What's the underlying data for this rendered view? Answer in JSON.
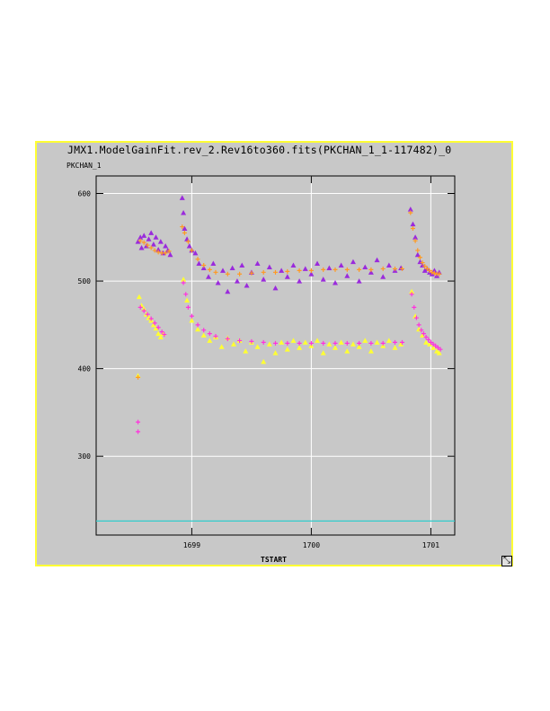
{
  "window": {
    "title": "JMX1.ModelGainFit.rev_2.Rev16to360.fits(PKCHAN_1_1-117482)_0",
    "resize_icon": "resize-diagonal-icon",
    "border_color": "#ffff33",
    "background_color": "#c8c8c8"
  },
  "chart_data": {
    "type": "scatter",
    "title": "JMX1.ModelGainFit.rev_2.Rev16to360.fits(PKCHAN_1_1-117482)_0",
    "xlabel": "TSTART",
    "ylabel": "PKCHAN_1",
    "xlim": [
      1698.2,
      1701.2
    ],
    "ylim": [
      210,
      620
    ],
    "xticks": [
      1699,
      1700,
      1701
    ],
    "yticks": [
      300,
      400,
      500,
      600
    ],
    "xtick_labels": [
      "1699",
      "1700",
      "1701"
    ],
    "ytick_labels": [
      "300",
      "400",
      "500",
      "600"
    ],
    "grid": true,
    "series": [
      {
        "color": "#9a2bdc",
        "marker": "triangle",
        "points": [
          [
            1698.55,
            545
          ],
          [
            1698.57,
            550
          ],
          [
            1698.58,
            538
          ],
          [
            1698.6,
            552
          ],
          [
            1698.62,
            540
          ],
          [
            1698.64,
            548
          ],
          [
            1698.66,
            555
          ],
          [
            1698.68,
            542
          ],
          [
            1698.7,
            550
          ],
          [
            1698.72,
            536
          ],
          [
            1698.74,
            545
          ],
          [
            1698.76,
            532
          ],
          [
            1698.78,
            540
          ],
          [
            1698.8,
            535
          ],
          [
            1698.82,
            530
          ],
          [
            1698.92,
            595
          ],
          [
            1698.93,
            578
          ],
          [
            1698.94,
            560
          ],
          [
            1698.96,
            548
          ],
          [
            1698.98,
            540
          ],
          [
            1699.0,
            535
          ],
          [
            1699.03,
            532
          ],
          [
            1699.06,
            520
          ],
          [
            1699.1,
            515
          ],
          [
            1699.14,
            505
          ],
          [
            1699.18,
            520
          ],
          [
            1699.22,
            498
          ],
          [
            1699.26,
            512
          ],
          [
            1699.3,
            488
          ],
          [
            1699.34,
            515
          ],
          [
            1699.38,
            500
          ],
          [
            1699.42,
            518
          ],
          [
            1699.46,
            495
          ],
          [
            1699.5,
            510
          ],
          [
            1699.55,
            520
          ],
          [
            1699.6,
            502
          ],
          [
            1699.65,
            516
          ],
          [
            1699.7,
            492
          ],
          [
            1699.75,
            512
          ],
          [
            1699.8,
            505
          ],
          [
            1699.85,
            518
          ],
          [
            1699.9,
            500
          ],
          [
            1699.95,
            514
          ],
          [
            1700.0,
            508
          ],
          [
            1700.05,
            520
          ],
          [
            1700.1,
            502
          ],
          [
            1700.15,
            515
          ],
          [
            1700.2,
            498
          ],
          [
            1700.25,
            518
          ],
          [
            1700.3,
            506
          ],
          [
            1700.35,
            522
          ],
          [
            1700.4,
            500
          ],
          [
            1700.45,
            516
          ],
          [
            1700.5,
            510
          ],
          [
            1700.55,
            524
          ],
          [
            1700.6,
            505
          ],
          [
            1700.65,
            518
          ],
          [
            1700.7,
            512
          ],
          [
            1700.75,
            515
          ],
          [
            1700.83,
            582
          ],
          [
            1700.85,
            565
          ],
          [
            1700.87,
            550
          ],
          [
            1700.89,
            530
          ],
          [
            1700.91,
            522
          ],
          [
            1700.93,
            518
          ],
          [
            1700.95,
            512
          ],
          [
            1700.97,
            514
          ],
          [
            1700.99,
            510
          ],
          [
            1701.01,
            508
          ],
          [
            1701.03,
            512
          ],
          [
            1701.05,
            506
          ],
          [
            1701.07,
            510
          ]
        ]
      },
      {
        "color": "#ffff33",
        "marker": "triangle",
        "points": [
          [
            1698.55,
            392
          ],
          [
            1698.56,
            482
          ],
          [
            1698.58,
            472
          ],
          [
            1698.6,
            468
          ],
          [
            1698.62,
            462
          ],
          [
            1698.64,
            458
          ],
          [
            1698.66,
            455
          ],
          [
            1698.68,
            450
          ],
          [
            1698.7,
            446
          ],
          [
            1698.72,
            440
          ],
          [
            1698.74,
            436
          ],
          [
            1698.76,
            440
          ],
          [
            1698.93,
            502
          ],
          [
            1698.96,
            478
          ],
          [
            1699.0,
            455
          ],
          [
            1699.05,
            445
          ],
          [
            1699.1,
            438
          ],
          [
            1699.15,
            432
          ],
          [
            1699.2,
            436
          ],
          [
            1699.25,
            425
          ],
          [
            1699.3,
            435
          ],
          [
            1699.35,
            428
          ],
          [
            1699.4,
            432
          ],
          [
            1699.45,
            420
          ],
          [
            1699.5,
            430
          ],
          [
            1699.55,
            425
          ],
          [
            1699.6,
            408
          ],
          [
            1699.65,
            428
          ],
          [
            1699.7,
            418
          ],
          [
            1699.75,
            430
          ],
          [
            1699.8,
            422
          ],
          [
            1699.85,
            432
          ],
          [
            1699.9,
            424
          ],
          [
            1699.95,
            430
          ],
          [
            1700.0,
            426
          ],
          [
            1700.05,
            432
          ],
          [
            1700.1,
            418
          ],
          [
            1700.15,
            428
          ],
          [
            1700.2,
            424
          ],
          [
            1700.25,
            430
          ],
          [
            1700.3,
            420
          ],
          [
            1700.35,
            428
          ],
          [
            1700.4,
            425
          ],
          [
            1700.45,
            432
          ],
          [
            1700.5,
            420
          ],
          [
            1700.55,
            430
          ],
          [
            1700.6,
            426
          ],
          [
            1700.65,
            432
          ],
          [
            1700.7,
            424
          ],
          [
            1700.75,
            428
          ],
          [
            1700.84,
            488
          ],
          [
            1700.87,
            460
          ],
          [
            1700.9,
            445
          ],
          [
            1700.93,
            438
          ],
          [
            1700.96,
            430
          ],
          [
            1700.99,
            428
          ],
          [
            1701.02,
            424
          ],
          [
            1701.05,
            420
          ],
          [
            1701.07,
            418
          ]
        ]
      },
      {
        "color": "#ff9922",
        "marker": "plus",
        "points": [
          [
            1698.55,
            390
          ],
          [
            1698.57,
            546
          ],
          [
            1698.6,
            544
          ],
          [
            1698.63,
            541
          ],
          [
            1698.66,
            538
          ],
          [
            1698.69,
            535
          ],
          [
            1698.72,
            533
          ],
          [
            1698.75,
            532
          ],
          [
            1698.78,
            532
          ],
          [
            1698.81,
            534
          ],
          [
            1698.92,
            562
          ],
          [
            1698.94,
            555
          ],
          [
            1698.97,
            545
          ],
          [
            1699.0,
            535
          ],
          [
            1699.05,
            525
          ],
          [
            1699.1,
            518
          ],
          [
            1699.15,
            513
          ],
          [
            1699.2,
            510
          ],
          [
            1699.3,
            508
          ],
          [
            1699.4,
            508
          ],
          [
            1699.5,
            509
          ],
          [
            1699.6,
            510
          ],
          [
            1699.7,
            510
          ],
          [
            1699.8,
            511
          ],
          [
            1699.9,
            512
          ],
          [
            1700.0,
            512
          ],
          [
            1700.1,
            513
          ],
          [
            1700.2,
            513
          ],
          [
            1700.3,
            513
          ],
          [
            1700.4,
            513
          ],
          [
            1700.5,
            513
          ],
          [
            1700.6,
            514
          ],
          [
            1700.7,
            514
          ],
          [
            1700.76,
            514
          ],
          [
            1700.83,
            578
          ],
          [
            1700.85,
            560
          ],
          [
            1700.87,
            546
          ],
          [
            1700.89,
            535
          ],
          [
            1700.91,
            527
          ],
          [
            1700.93,
            521
          ],
          [
            1700.95,
            517
          ],
          [
            1700.97,
            514
          ],
          [
            1700.99,
            512
          ],
          [
            1701.01,
            510
          ],
          [
            1701.03,
            509
          ],
          [
            1701.05,
            508
          ],
          [
            1701.07,
            508
          ]
        ]
      },
      {
        "color": "#ff33dd",
        "marker": "plus",
        "points": [
          [
            1698.55,
            339
          ],
          [
            1698.55,
            328
          ],
          [
            1698.57,
            470
          ],
          [
            1698.6,
            466
          ],
          [
            1698.63,
            462
          ],
          [
            1698.66,
            457
          ],
          [
            1698.69,
            452
          ],
          [
            1698.72,
            447
          ],
          [
            1698.75,
            442
          ],
          [
            1698.77,
            439
          ],
          [
            1698.93,
            498
          ],
          [
            1698.95,
            485
          ],
          [
            1698.97,
            470
          ],
          [
            1699.0,
            460
          ],
          [
            1699.05,
            450
          ],
          [
            1699.1,
            444
          ],
          [
            1699.15,
            440
          ],
          [
            1699.2,
            437
          ],
          [
            1699.3,
            434
          ],
          [
            1699.4,
            432
          ],
          [
            1699.5,
            431
          ],
          [
            1699.6,
            430
          ],
          [
            1699.7,
            429
          ],
          [
            1699.8,
            429
          ],
          [
            1699.9,
            429
          ],
          [
            1700.0,
            429
          ],
          [
            1700.1,
            429
          ],
          [
            1700.2,
            429
          ],
          [
            1700.3,
            429
          ],
          [
            1700.4,
            429
          ],
          [
            1700.5,
            429
          ],
          [
            1700.6,
            429
          ],
          [
            1700.7,
            430
          ],
          [
            1700.76,
            430
          ],
          [
            1700.84,
            485
          ],
          [
            1700.86,
            470
          ],
          [
            1700.88,
            458
          ],
          [
            1700.9,
            450
          ],
          [
            1700.92,
            444
          ],
          [
            1700.94,
            440
          ],
          [
            1700.96,
            436
          ],
          [
            1700.98,
            433
          ],
          [
            1701.0,
            430
          ],
          [
            1701.02,
            428
          ],
          [
            1701.04,
            426
          ],
          [
            1701.06,
            424
          ],
          [
            1701.08,
            422
          ]
        ]
      },
      {
        "color": "#33cccc",
        "marker": "line",
        "points": [
          [
            1698.2,
            226
          ],
          [
            1701.2,
            226
          ]
        ]
      }
    ]
  }
}
